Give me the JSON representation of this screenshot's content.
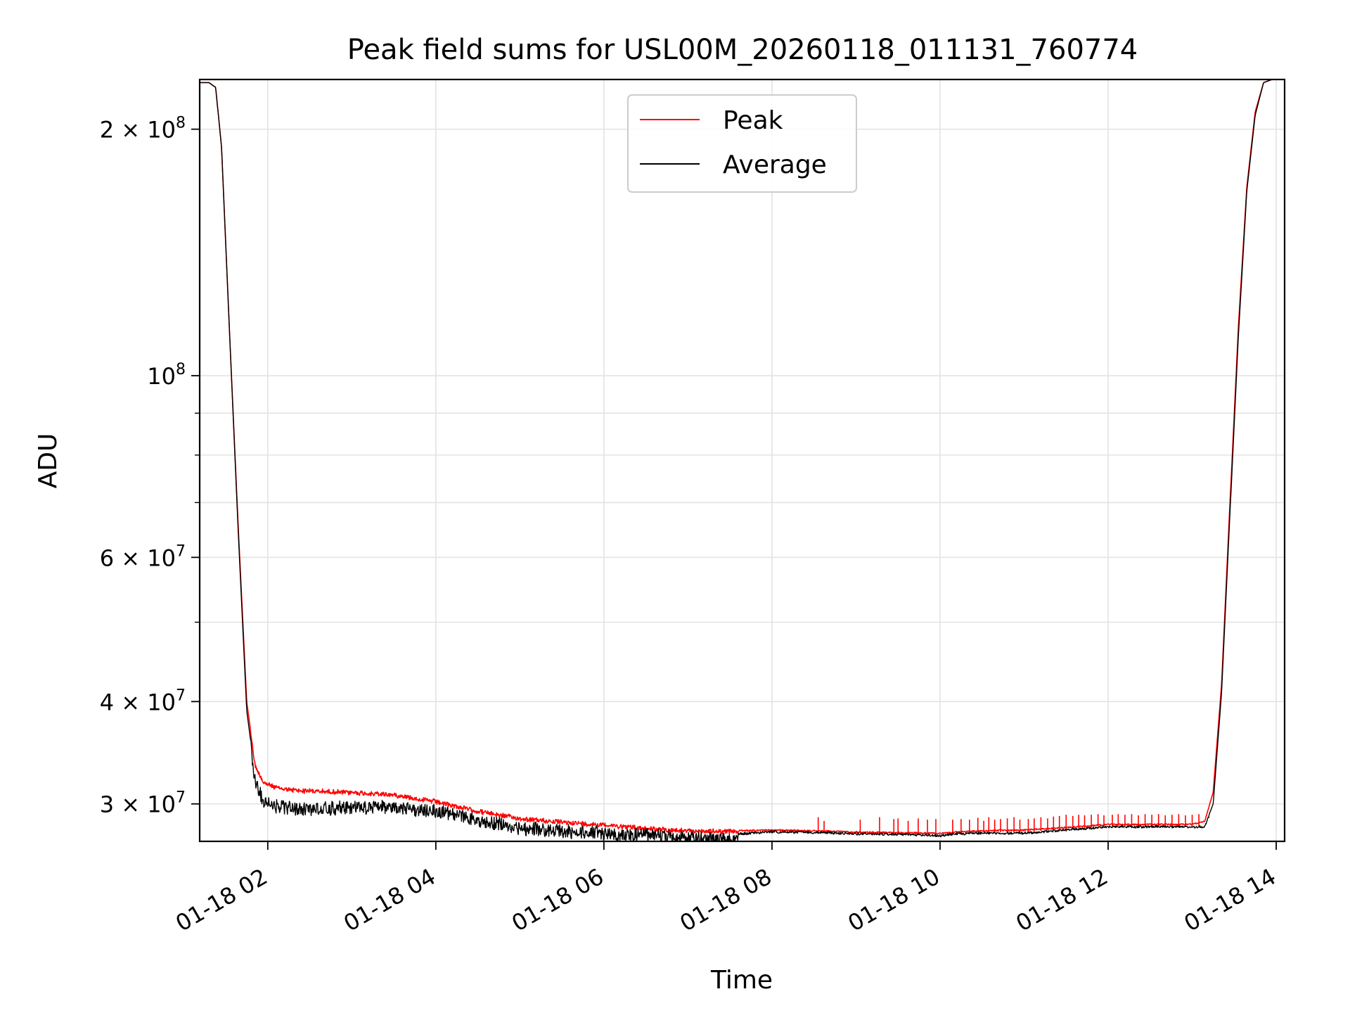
{
  "chart_data": {
    "type": "line",
    "title": "Peak field sums for USL00M_20260118_011131_760774",
    "xlabel": "Time",
    "ylabel": "ADU",
    "y_scale": "log",
    "xlim_hours": [
      1.19,
      14.1
    ],
    "ylim": [
      27000000,
      230000000
    ],
    "grid": true,
    "legend_position": "upper-center",
    "x_ticks": [
      {
        "value": 2,
        "label": "01-18 02"
      },
      {
        "value": 4,
        "label": "01-18 04"
      },
      {
        "value": 6,
        "label": "01-18 06"
      },
      {
        "value": 8,
        "label": "01-18 08"
      },
      {
        "value": 10,
        "label": "01-18 10"
      },
      {
        "value": 12,
        "label": "01-18 12"
      },
      {
        "value": 14,
        "label": "01-18 14"
      }
    ],
    "y_major_ticks": [
      {
        "value": 30000000,
        "mantissa": "3 × 10",
        "exp": "7"
      },
      {
        "value": 40000000,
        "mantissa": "4 × 10",
        "exp": "7"
      },
      {
        "value": 60000000,
        "mantissa": "6 × 10",
        "exp": "7"
      },
      {
        "value": 100000000,
        "mantissa": "10",
        "exp": "8"
      },
      {
        "value": 200000000,
        "mantissa": "2 × 10",
        "exp": "8"
      }
    ],
    "y_minor_gridlines": [
      50000000,
      70000000,
      80000000,
      90000000
    ],
    "series": [
      {
        "name": "Peak",
        "color": "#ff0000",
        "x_hours": [
          1.19,
          1.3,
          1.38,
          1.45,
          1.55,
          1.65,
          1.75,
          1.85,
          1.95,
          2.1,
          2.3,
          2.6,
          3.0,
          3.5,
          4.0,
          4.5,
          5.0,
          5.5,
          6.0,
          6.5,
          7.0,
          7.5,
          8.0,
          8.5,
          9.0,
          9.5,
          10.0,
          10.2,
          10.5,
          11.0,
          11.5,
          12.0,
          12.5,
          13.0,
          13.15,
          13.25,
          13.35,
          13.45,
          13.55,
          13.65,
          13.75,
          13.85,
          13.95
        ],
        "values": [
          228000000,
          228000000,
          225000000,
          190000000,
          110000000,
          65000000,
          40000000,
          33500000,
          32000000,
          31500000,
          31300000,
          31200000,
          31100000,
          30900000,
          30300000,
          29500000,
          28900000,
          28600000,
          28400000,
          28100000,
          27900000,
          27850000,
          27900000,
          27850000,
          27750000,
          27700000,
          27650000,
          27750000,
          27850000,
          27900000,
          28100000,
          28350000,
          28350000,
          28350000,
          28600000,
          31000000,
          42000000,
          70000000,
          115000000,
          170000000,
          210000000,
          228000000,
          230000000
        ]
      },
      {
        "name": "Average",
        "color": "#000000",
        "x_hours": [
          1.19,
          1.3,
          1.38,
          1.45,
          1.55,
          1.65,
          1.75,
          1.85,
          1.95,
          2.1,
          2.3,
          2.6,
          3.0,
          3.5,
          4.0,
          4.5,
          5.0,
          5.5,
          6.0,
          6.5,
          7.0,
          7.5,
          8.0,
          8.5,
          9.0,
          9.5,
          10.0,
          10.2,
          10.5,
          11.0,
          11.5,
          12.0,
          12.5,
          13.0,
          13.15,
          13.25,
          13.35,
          13.45,
          13.55,
          13.65,
          13.75,
          13.85,
          13.95
        ],
        "values": [
          228000000,
          228000000,
          225000000,
          190000000,
          110000000,
          64000000,
          39000000,
          32500000,
          30600000,
          30200000,
          30000000,
          30000000,
          30100000,
          30100000,
          29800000,
          29000000,
          28400000,
          28100000,
          28000000,
          27800000,
          27600000,
          27600000,
          27800000,
          27750000,
          27650000,
          27600000,
          27500000,
          27650000,
          27700000,
          27700000,
          27950000,
          28200000,
          28200000,
          28200000,
          28200000,
          30000000,
          41000000,
          68000000,
          112000000,
          168000000,
          208000000,
          228000000,
          230000000
        ]
      }
    ],
    "peak_spikes": {
      "color": "#ff0000",
      "x_hours": [
        8.55,
        8.62,
        9.05,
        9.28,
        9.45,
        9.5,
        9.62,
        9.74,
        9.85,
        9.95,
        10.15,
        10.25,
        10.35,
        10.45,
        10.52,
        10.58,
        10.65,
        10.72,
        10.8,
        10.88,
        10.95,
        11.05,
        11.12,
        11.2,
        11.28,
        11.35,
        11.42,
        11.5,
        11.58,
        11.65,
        11.72,
        11.8,
        11.88,
        11.95,
        12.05,
        12.12,
        12.2,
        12.28,
        12.36,
        12.44,
        12.52,
        12.6,
        12.68,
        12.76,
        12.84,
        12.92,
        13.0,
        13.08
      ],
      "values": [
        28900000,
        28600000,
        28700000,
        28900000,
        28750000,
        28800000,
        28600000,
        28800000,
        28700000,
        28750000,
        28700000,
        28750000,
        28700000,
        28850000,
        28600000,
        28900000,
        28700000,
        28750000,
        28800000,
        28900000,
        28700000,
        28750000,
        28800000,
        28900000,
        28800000,
        28950000,
        29000000,
        29100000,
        29000000,
        29100000,
        29050000,
        29100000,
        29150000,
        29050000,
        29100000,
        29150000,
        29100000,
        29150000,
        29050000,
        29150000,
        29100000,
        29150000,
        29050000,
        29100000,
        29150000,
        29050000,
        29100000,
        29150000
      ]
    },
    "legend": {
      "entries": [
        "Peak",
        "Average"
      ]
    }
  }
}
